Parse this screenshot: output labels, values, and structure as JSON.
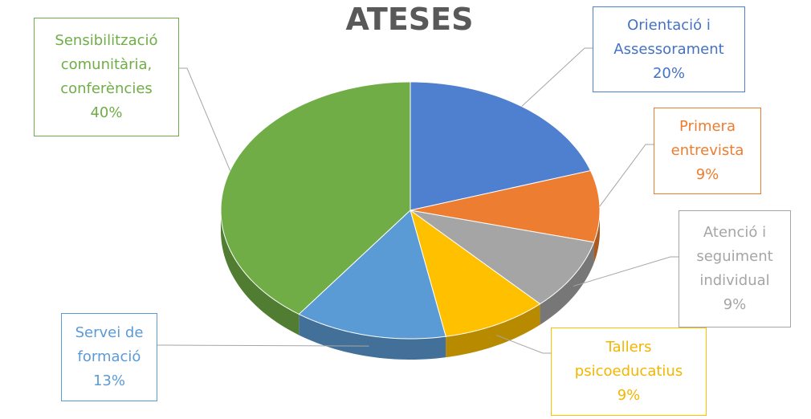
{
  "chart_data": {
    "type": "pie",
    "title": "ATESES",
    "categories": [
      "Orientació i Assessorament",
      "Primera entrevista",
      "Atenció i seguiment individual",
      "Tallers psicoeducatius",
      "Servei de formació",
      "Sensibilització comunitària, conferències"
    ],
    "values": [
      20,
      9,
      9,
      9,
      13,
      40
    ],
    "value_labels": [
      "20%",
      "9%",
      "9%",
      "9%",
      "13%",
      "40%"
    ],
    "colors": [
      "#4f7fcf",
      "#ed7d31",
      "#a5a5a5",
      "#ffc000",
      "#5b9bd5",
      "#70ad47"
    ]
  }
}
